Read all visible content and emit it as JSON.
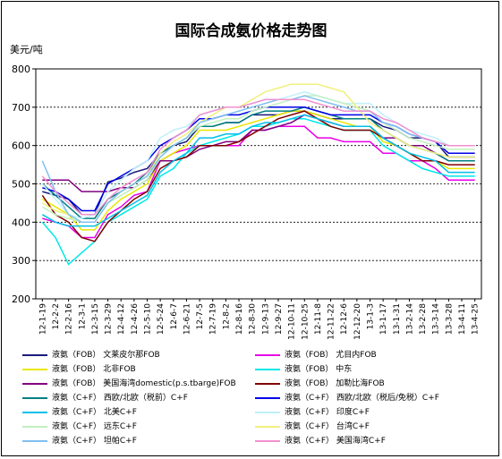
{
  "chart_data": {
    "type": "line",
    "title": "国际合成氨价格走势图",
    "ylabel": "美元/吨",
    "ylim": [
      200,
      800
    ],
    "yticks": [
      200,
      300,
      400,
      500,
      600,
      700,
      800
    ],
    "grid": true,
    "legend_position": "bottom",
    "categories": [
      "12-1-19",
      "12-2-2",
      "12-2-16",
      "12-3-1",
      "12-3-15",
      "12-3-29",
      "12-4-12",
      "12-4-26",
      "12-5-10",
      "12-5-24",
      "12-6-7",
      "12-6-21",
      "12-7-5",
      "12-7-19",
      "12-8-2",
      "12-8-16",
      "12-8-30",
      "12-9-13",
      "12-9-27",
      "12-10-11",
      "12-10-25",
      "12-11-8",
      "12-11-22",
      "12-12-6",
      "12-12-20",
      "13-1-3",
      "13-1-17",
      "13-1-31",
      "13-2-14",
      "13-2-28",
      "13-3-14",
      "13-3-28",
      "13-4-11",
      "13-4-25"
    ],
    "series": [
      {
        "name": "液氨（FOB） 文莱皮尔那FOB",
        "color": "#1a1a7a",
        "values": [
          480,
          470,
          460,
          420,
          420,
          505,
          515,
          530,
          540,
          580,
          600,
          610,
          650,
          650,
          660,
          660,
          680,
          680,
          680,
          690,
          690,
          680,
          670,
          670,
          670,
          670,
          650,
          640,
          620,
          620,
          610,
          570,
          570,
          570
        ]
      },
      {
        "name": "液氨（FOB） 尤目内FOB",
        "color": "#e800e8",
        "values": [
          410,
          400,
          390,
          360,
          360,
          420,
          440,
          470,
          480,
          560,
          580,
          590,
          600,
          600,
          600,
          600,
          640,
          640,
          650,
          650,
          650,
          620,
          620,
          610,
          610,
          610,
          580,
          580,
          560,
          560,
          540,
          510,
          510,
          510
        ]
      },
      {
        "name": "液氨（FOB） 北非FOB",
        "color": "#e8e800",
        "values": [
          460,
          440,
          420,
          380,
          380,
          430,
          460,
          480,
          500,
          560,
          580,
          600,
          640,
          640,
          640,
          650,
          660,
          670,
          680,
          690,
          690,
          680,
          670,
          660,
          650,
          650,
          610,
          600,
          580,
          560,
          560,
          540,
          540,
          540
        ]
      },
      {
        "name": "液氨（FOB） 中东",
        "color": "#00e8e8",
        "values": [
          400,
          360,
          290,
          320,
          350,
          400,
          420,
          440,
          460,
          520,
          540,
          580,
          600,
          610,
          620,
          630,
          650,
          650,
          660,
          670,
          670,
          660,
          650,
          640,
          640,
          640,
          600,
          580,
          560,
          540,
          530,
          520,
          520,
          520
        ]
      },
      {
        "name": "液氨（FOB） 美国海湾domestic(p.s.tbarge)FOB",
        "color": "#800080",
        "values": [
          510,
          510,
          510,
          480,
          480,
          480,
          490,
          490,
          510,
          560,
          560,
          570,
          590,
          600,
          610,
          610,
          640,
          640,
          650,
          660,
          680,
          670,
          660,
          650,
          650,
          650,
          620,
          620,
          600,
          600,
          580,
          560,
          560,
          560
        ]
      },
      {
        "name": "液氨（FOB） 加勒比海FOB",
        "color": "#800000",
        "values": [
          470,
          420,
          400,
          360,
          350,
          400,
          430,
          460,
          480,
          540,
          560,
          570,
          600,
          600,
          600,
          610,
          630,
          650,
          670,
          680,
          690,
          670,
          650,
          640,
          640,
          640,
          620,
          600,
          580,
          560,
          560,
          550,
          550,
          550
        ]
      },
      {
        "name": "液氨（C+F） 西欧/北欧（税前）C+F",
        "color": "#008080",
        "values": [
          500,
          470,
          440,
          410,
          410,
          460,
          480,
          500,
          530,
          580,
          600,
          620,
          650,
          650,
          660,
          660,
          680,
          690,
          690,
          690,
          700,
          690,
          680,
          670,
          670,
          670,
          640,
          620,
          600,
          590,
          580,
          560,
          560,
          560
        ]
      },
      {
        "name": "液氨（C+F） 西欧/北欧（税后/免税）C+F",
        "color": "#0000e8",
        "values": [
          490,
          480,
          460,
          430,
          430,
          500,
          520,
          540,
          560,
          600,
          620,
          640,
          670,
          670,
          680,
          680,
          690,
          700,
          700,
          700,
          700,
          690,
          680,
          680,
          680,
          680,
          660,
          650,
          630,
          620,
          610,
          580,
          580,
          580
        ]
      },
      {
        "name": "液氨（C+F） 北美C+F",
        "color": "#00c0e8",
        "values": [
          420,
          400,
          390,
          390,
          390,
          410,
          430,
          450,
          470,
          530,
          560,
          580,
          620,
          620,
          630,
          630,
          650,
          660,
          660,
          670,
          680,
          670,
          660,
          650,
          650,
          650,
          620,
          600,
          580,
          570,
          560,
          530,
          530,
          530
        ]
      },
      {
        "name": "液氨（C+F） 印度C+F",
        "color": "#c0f0f8",
        "values": [
          500,
          460,
          420,
          410,
          420,
          480,
          510,
          540,
          560,
          620,
          640,
          650,
          680,
          690,
          700,
          700,
          710,
          720,
          720,
          730,
          740,
          730,
          720,
          710,
          710,
          710,
          680,
          660,
          640,
          630,
          620,
          600,
          600,
          600
        ]
      },
      {
        "name": "液氨（C+F） 远东C+F",
        "color": "#c0f0c0",
        "values": [
          440,
          420,
          410,
          400,
          400,
          450,
          470,
          490,
          510,
          570,
          600,
          620,
          650,
          660,
          670,
          670,
          690,
          700,
          710,
          720,
          730,
          730,
          720,
          710,
          700,
          690,
          660,
          640,
          620,
          610,
          600,
          590,
          590,
          590
        ]
      },
      {
        "name": "液氨（C+F） 台湾C+F",
        "color": "#f0f080",
        "values": [
          450,
          430,
          420,
          400,
          400,
          450,
          480,
          500,
          520,
          580,
          610,
          630,
          660,
          680,
          700,
          700,
          720,
          740,
          750,
          760,
          760,
          760,
          750,
          740,
          700,
          660,
          640,
          620,
          600,
          590,
          580,
          570,
          570,
          570
        ]
      },
      {
        "name": "液氨（C+F） 坦帕C+F",
        "color": "#80c0f0",
        "values": [
          560,
          480,
          420,
          400,
          400,
          450,
          480,
          500,
          520,
          570,
          600,
          620,
          660,
          670,
          680,
          690,
          700,
          710,
          720,
          720,
          730,
          720,
          710,
          700,
          690,
          690,
          660,
          650,
          630,
          620,
          610,
          600,
          600,
          600
        ]
      },
      {
        "name": "液氨（C+F） 美国海湾C+F",
        "color": "#f090d0",
        "values": [
          520,
          480,
          450,
          420,
          420,
          460,
          490,
          510,
          530,
          590,
          620,
          640,
          680,
          690,
          700,
          700,
          710,
          720,
          720,
          720,
          720,
          710,
          700,
          690,
          690,
          690,
          670,
          660,
          640,
          620,
          610,
          600,
          600,
          600
        ]
      }
    ]
  }
}
